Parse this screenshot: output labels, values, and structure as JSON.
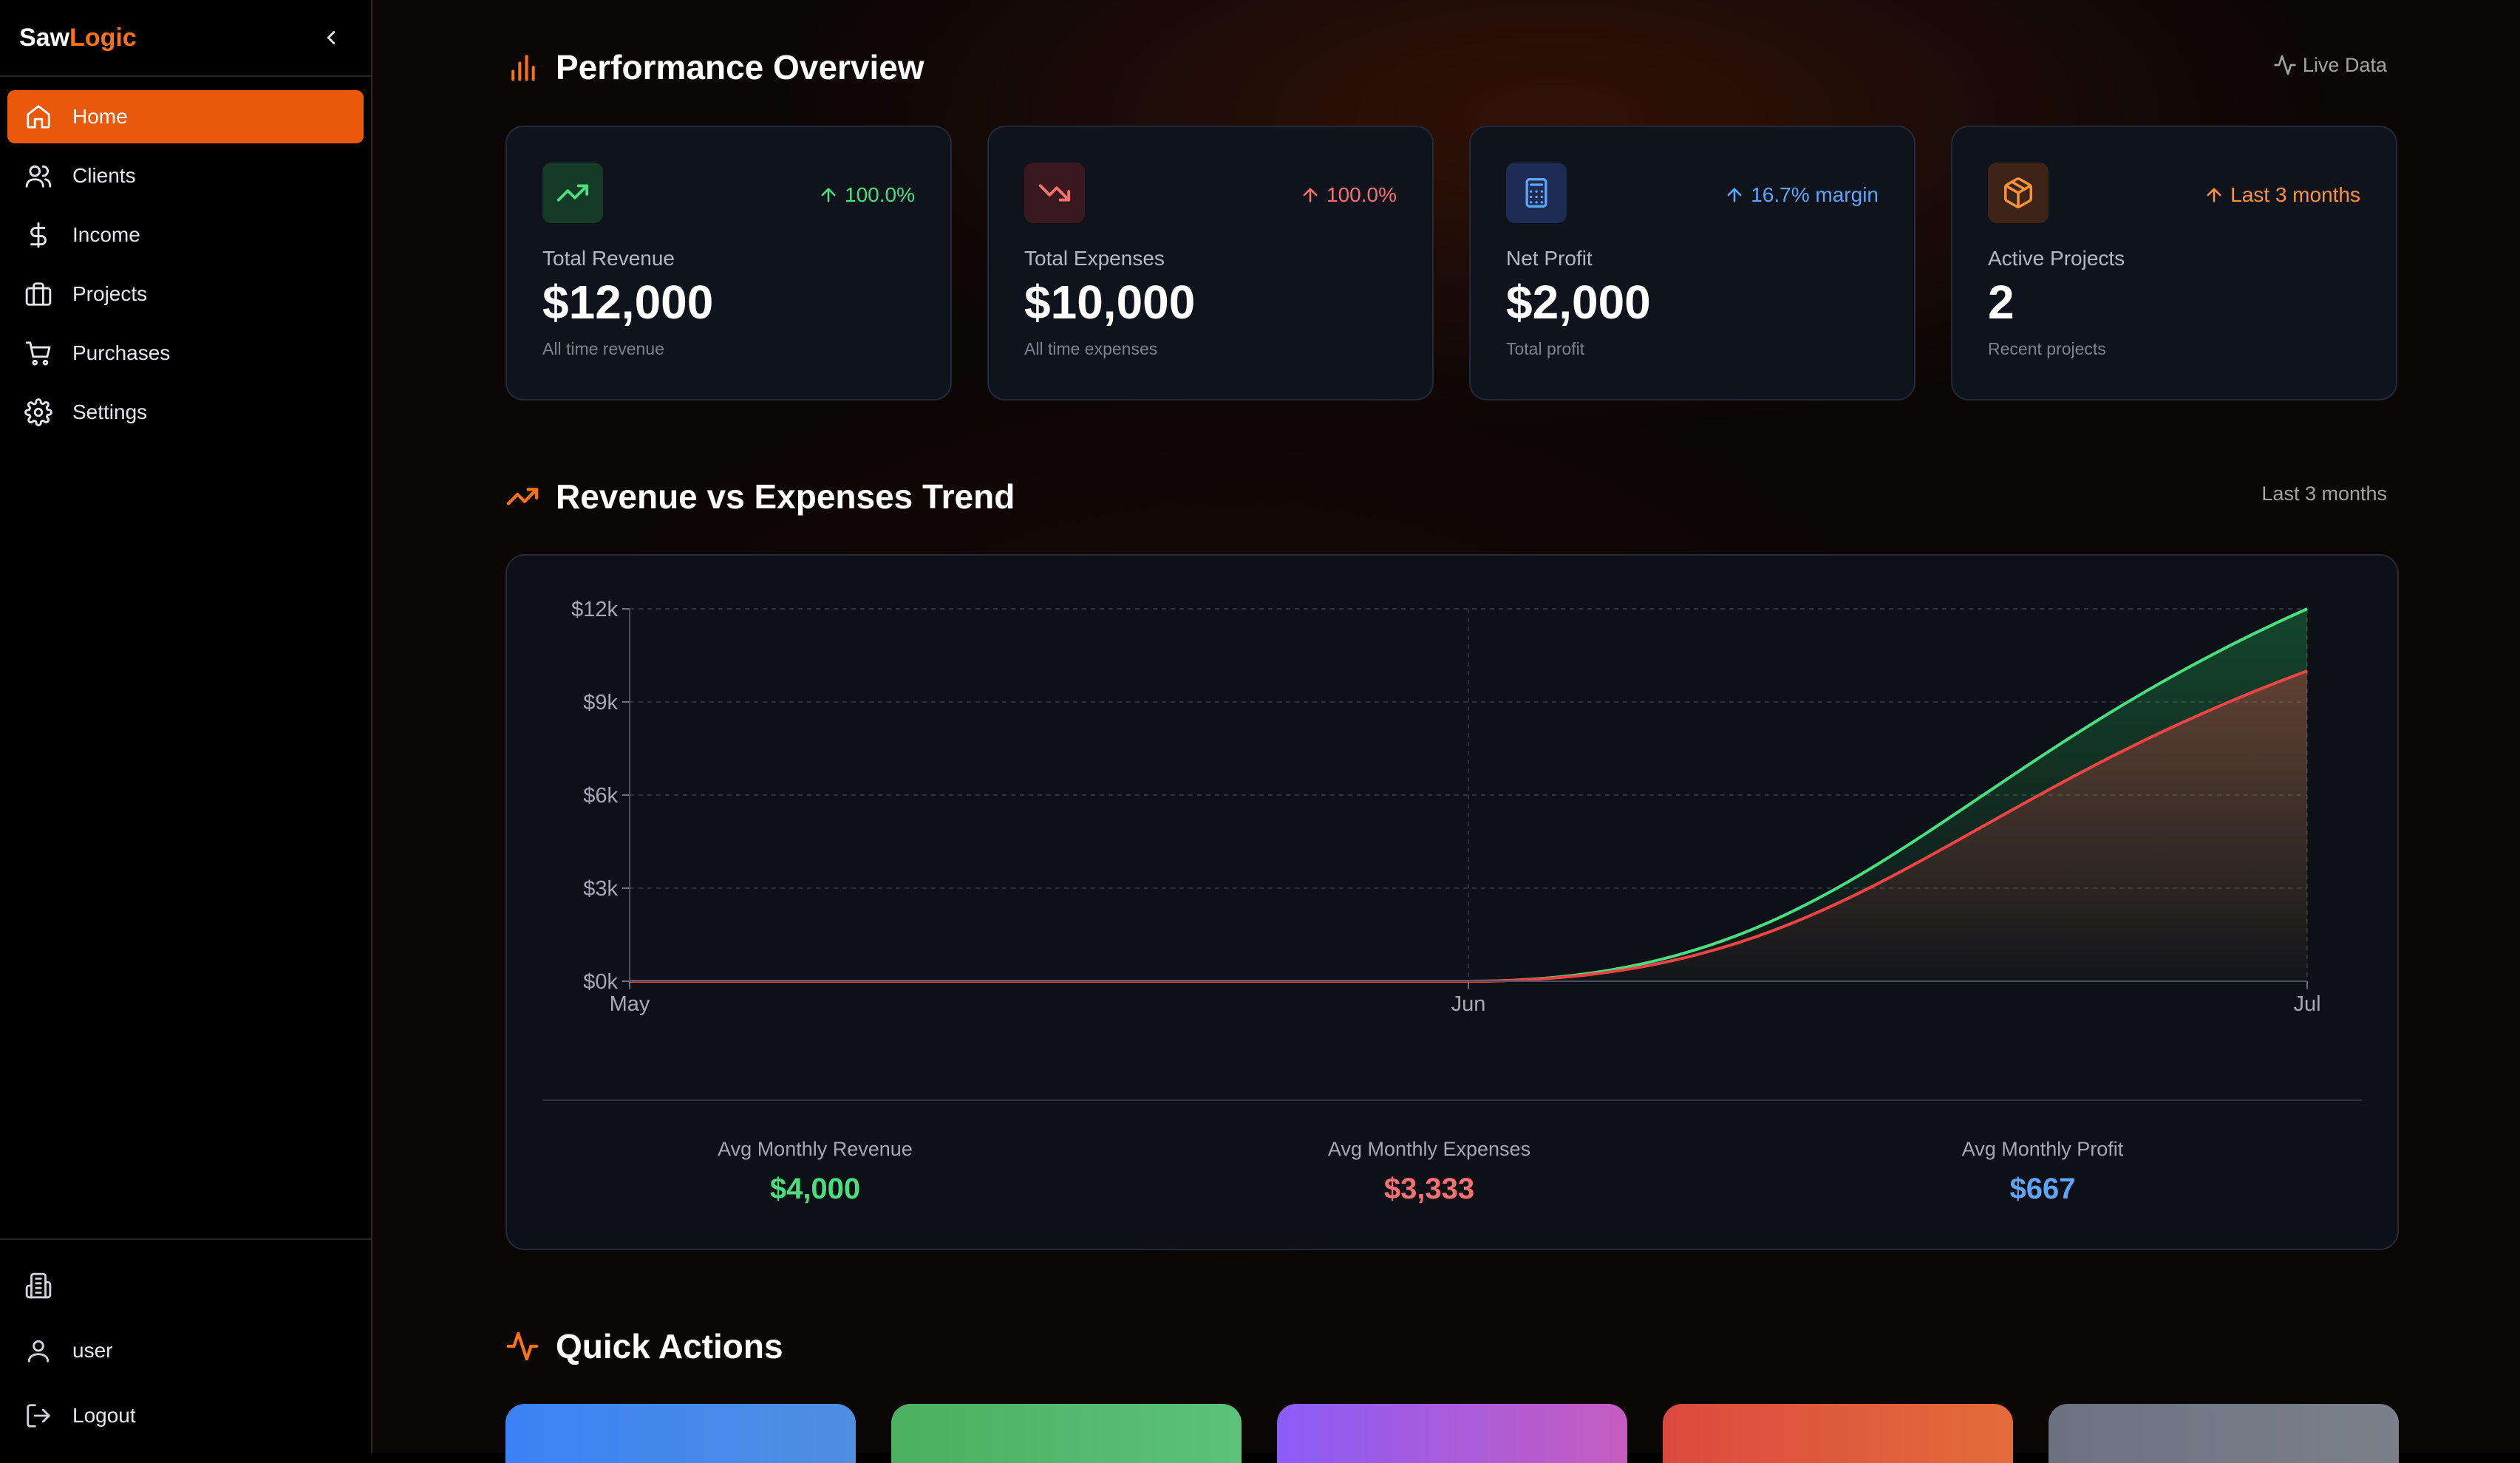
{
  "sidebar": {
    "brand_part1": "Saw",
    "brand_part2": "Logic",
    "items": [
      {
        "label": "Home",
        "icon": "home-icon"
      },
      {
        "label": "Clients",
        "icon": "users-icon"
      },
      {
        "label": "Income",
        "icon": "dollar-icon"
      },
      {
        "label": "Projects",
        "icon": "briefcase-icon"
      },
      {
        "label": "Purchases",
        "icon": "cart-icon"
      },
      {
        "label": "Settings",
        "icon": "gear-icon"
      }
    ],
    "bottom": {
      "company_icon": "building-icon",
      "user_label": "user",
      "logout_label": "Logout"
    }
  },
  "overview": {
    "title": "Performance Overview",
    "live_label": "Live Data",
    "cards": [
      {
        "label": "Total Revenue",
        "value": "$12,000",
        "sub": "All time revenue",
        "badge": "100.0%",
        "color": "#4ade80",
        "icon": "trending-up-icon"
      },
      {
        "label": "Total Expenses",
        "value": "$10,000",
        "sub": "All time expenses",
        "badge": "100.0%",
        "color": "#f87171",
        "icon": "trending-down-icon"
      },
      {
        "label": "Net Profit",
        "value": "$2,000",
        "sub": "Total profit",
        "badge": "16.7% margin",
        "color": "#60a5fa",
        "icon": "calculator-icon"
      },
      {
        "label": "Active Projects",
        "value": "2",
        "sub": "Recent projects",
        "badge": "Last 3 months",
        "color": "#fb923c",
        "icon": "package-icon"
      }
    ]
  },
  "trend": {
    "title": "Revenue vs Expenses Trend",
    "range_label": "Last 3 months",
    "averages": [
      {
        "label": "Avg Monthly Revenue",
        "value": "$4,000",
        "color": "#4ade80"
      },
      {
        "label": "Avg Monthly Expenses",
        "value": "$3,333",
        "color": "#f87171"
      },
      {
        "label": "Avg Monthly Profit",
        "value": "$667",
        "color": "#60a5fa"
      }
    ]
  },
  "chart_data": {
    "type": "area",
    "categories": [
      "May",
      "Jun",
      "Jul"
    ],
    "series": [
      {
        "name": "",
        "values": [
          0,
          0,
          12000
        ],
        "color": "#4ade80"
      },
      {
        "name": "",
        "values": [
          0,
          0,
          10000
        ],
        "color": "#ef4444"
      }
    ],
    "y_ticks": [
      "$0k",
      "$3k",
      "$6k",
      "$9k",
      "$12k"
    ],
    "ylim": [
      0,
      12000
    ],
    "grid": true
  },
  "quick_actions": {
    "title": "Quick Actions",
    "buttons": [
      {
        "color1": "#3b82f6",
        "color2": "#4f8fe0"
      },
      {
        "color1": "#4caf61",
        "color2": "#5cc27a"
      },
      {
        "color1": "#8b5cf6",
        "color2": "#c65cc0"
      },
      {
        "color1": "#dc4a3f",
        "color2": "#e36b3a"
      },
      {
        "color1": "#6b7280",
        "color2": "#7b808a"
      }
    ]
  }
}
